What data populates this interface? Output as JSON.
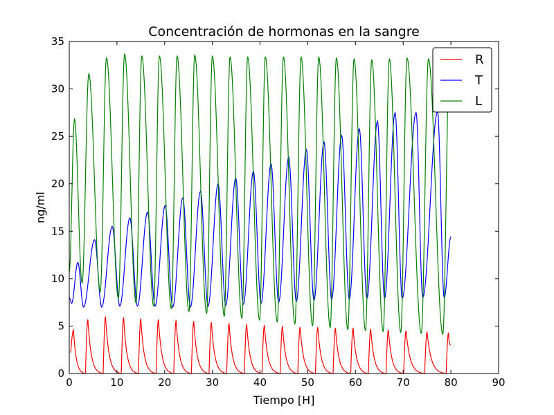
{
  "chart_data": {
    "type": "line",
    "title": "Concentración de hormonas en la sangre",
    "xlabel": "Tiempo [H]",
    "ylabel": "ng/ml",
    "xlim": [
      0,
      90
    ],
    "ylim": [
      0,
      35
    ],
    "xticks": [
      "0",
      "10",
      "20",
      "30",
      "40",
      "50",
      "60",
      "70",
      "80",
      "90"
    ],
    "yticks": [
      "0",
      "5",
      "10",
      "15",
      "20",
      "25",
      "30",
      "35"
    ],
    "grid": false,
    "legend_position": "top-right",
    "series": [
      {
        "name": "R",
        "color": "#ff0000",
        "peaks": [
          [
            0.9,
            4.6
          ],
          [
            3.9,
            5.7
          ],
          [
            7.6,
            6.0
          ],
          [
            11.4,
            5.9
          ],
          [
            15.0,
            5.8
          ],
          [
            18.7,
            5.7
          ],
          [
            22.4,
            5.6
          ],
          [
            26.1,
            5.5
          ],
          [
            29.8,
            5.4
          ],
          [
            33.5,
            5.3
          ],
          [
            37.2,
            5.2
          ],
          [
            40.9,
            5.1
          ],
          [
            44.7,
            5.0
          ],
          [
            48.4,
            4.9
          ],
          [
            52.1,
            4.9
          ],
          [
            55.8,
            4.8
          ],
          [
            59.5,
            4.8
          ],
          [
            63.2,
            4.7
          ],
          [
            66.9,
            4.6
          ],
          [
            70.6,
            4.5
          ],
          [
            75.0,
            4.4
          ],
          [
            79.5,
            4.3
          ]
        ],
        "troughs": [
          [
            0.3,
            2.2
          ],
          [
            3.4,
            0.0
          ],
          [
            7.1,
            0.0
          ],
          [
            10.9,
            0.0
          ],
          [
            14.5,
            0.0
          ],
          [
            18.2,
            0.0
          ],
          [
            21.9,
            0.0
          ],
          [
            25.6,
            0.0
          ],
          [
            29.3,
            0.0
          ],
          [
            33.0,
            0.0
          ],
          [
            36.7,
            0.0
          ],
          [
            40.4,
            0.0
          ],
          [
            44.2,
            0.0
          ],
          [
            47.9,
            0.0
          ],
          [
            51.6,
            0.0
          ],
          [
            55.3,
            0.0
          ],
          [
            59.0,
            0.0
          ],
          [
            62.7,
            0.0
          ],
          [
            66.4,
            0.0
          ],
          [
            70.1,
            0.0
          ],
          [
            74.5,
            0.0
          ],
          [
            79.0,
            0.0
          ]
        ],
        "end": [
          80.0,
          3.0
        ]
      },
      {
        "name": "T",
        "color": "#0000ff",
        "start": [
          0.0,
          8.0
        ],
        "troughs": [
          [
            0.5,
            7.4
          ],
          [
            3.0,
            7.0
          ],
          [
            6.8,
            7.0
          ],
          [
            10.6,
            7.1
          ],
          [
            14.3,
            7.1
          ],
          [
            18.0,
            7.1
          ],
          [
            21.7,
            7.0
          ],
          [
            25.4,
            7.0
          ],
          [
            29.1,
            7.1
          ],
          [
            32.8,
            7.2
          ],
          [
            36.5,
            7.3
          ],
          [
            40.2,
            7.4
          ],
          [
            43.9,
            7.5
          ],
          [
            47.6,
            7.6
          ],
          [
            51.3,
            7.7
          ],
          [
            55.0,
            7.8
          ],
          [
            58.7,
            7.8
          ],
          [
            62.4,
            7.9
          ],
          [
            66.1,
            7.9
          ],
          [
            69.8,
            7.9
          ],
          [
            74.1,
            8.0
          ],
          [
            78.6,
            8.0
          ]
        ],
        "peaks": [
          [
            1.8,
            11.7
          ],
          [
            5.3,
            14.1
          ],
          [
            9.0,
            15.5
          ],
          [
            12.7,
            16.4
          ],
          [
            16.4,
            17.0
          ],
          [
            20.1,
            17.7
          ],
          [
            23.8,
            18.5
          ],
          [
            27.5,
            19.2
          ],
          [
            31.2,
            20.0
          ],
          [
            34.9,
            20.6
          ],
          [
            38.6,
            21.3
          ],
          [
            42.3,
            22.1
          ],
          [
            46.0,
            22.8
          ],
          [
            49.7,
            23.6
          ],
          [
            53.4,
            24.4
          ],
          [
            57.1,
            25.1
          ],
          [
            60.8,
            25.8
          ],
          [
            64.6,
            26.6
          ],
          [
            68.3,
            27.5
          ],
          [
            72.7,
            27.5
          ],
          [
            77.2,
            27.6
          ]
        ],
        "end": [
          80.0,
          14.4
        ]
      },
      {
        "name": "L",
        "color": "#008000",
        "start": [
          0.0,
          10.7
        ],
        "peaks": [
          [
            1.1,
            26.8
          ],
          [
            4.1,
            31.6
          ],
          [
            7.8,
            33.3
          ],
          [
            11.6,
            33.7
          ],
          [
            15.2,
            33.5
          ],
          [
            18.9,
            33.5
          ],
          [
            22.6,
            33.5
          ],
          [
            26.3,
            33.6
          ],
          [
            30.0,
            33.5
          ],
          [
            33.7,
            33.4
          ],
          [
            37.4,
            33.4
          ],
          [
            41.1,
            33.4
          ],
          [
            44.9,
            33.4
          ],
          [
            48.6,
            33.4
          ],
          [
            52.3,
            33.4
          ],
          [
            56.0,
            33.3
          ],
          [
            59.7,
            33.2
          ],
          [
            63.4,
            33.1
          ],
          [
            67.1,
            33.2
          ],
          [
            70.8,
            33.3
          ],
          [
            75.3,
            33.2
          ],
          [
            79.7,
            33.0
          ]
        ],
        "troughs": [
          [
            2.7,
            9.5
          ],
          [
            6.5,
            8.6
          ],
          [
            10.3,
            7.9
          ],
          [
            14.0,
            7.4
          ],
          [
            17.7,
            7.1
          ],
          [
            21.4,
            6.8
          ],
          [
            25.1,
            6.5
          ],
          [
            28.8,
            6.3
          ],
          [
            32.5,
            6.0
          ],
          [
            36.2,
            5.8
          ],
          [
            39.9,
            5.6
          ],
          [
            43.6,
            5.4
          ],
          [
            47.3,
            5.2
          ],
          [
            51.0,
            5.0
          ],
          [
            54.7,
            4.8
          ],
          [
            58.4,
            4.6
          ],
          [
            62.1,
            4.5
          ],
          [
            65.8,
            4.4
          ],
          [
            69.5,
            4.3
          ],
          [
            73.8,
            4.2
          ],
          [
            78.3,
            4.1
          ]
        ],
        "end": [
          80.0,
          29.0
        ]
      }
    ]
  }
}
